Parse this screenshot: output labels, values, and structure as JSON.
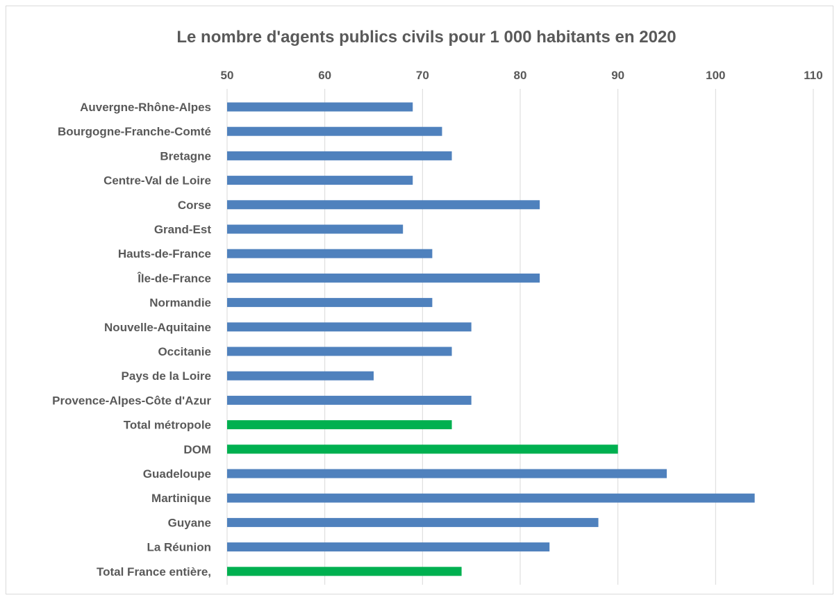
{
  "chart_data": {
    "type": "bar",
    "orientation": "horizontal",
    "title": "Le nombre d'agents publics civils pour 1 000 habitants en 2020",
    "xlabel": "",
    "ylabel": "",
    "xlim": [
      50,
      110
    ],
    "xticks": [
      50,
      60,
      70,
      80,
      90,
      100,
      110
    ],
    "x_axis_position": "top",
    "grid": "vertical",
    "categories": [
      "Auvergne-Rhône-Alpes",
      "Bourgogne-Franche-Comté",
      "Bretagne",
      "Centre-Val de Loire",
      "Corse",
      "Grand-Est",
      "Hauts-de-France",
      "Île-de-France",
      "Normandie",
      "Nouvelle-Aquitaine",
      "Occitanie",
      "Pays de la Loire",
      "Provence-Alpes-Côte d'Azur",
      "Total métropole",
      "DOM",
      "Guadeloupe",
      "Martinique",
      "Guyane",
      "La Réunion",
      "Total France entière,"
    ],
    "values": [
      69,
      72,
      73,
      69,
      82,
      68,
      71,
      82,
      71,
      75,
      73,
      65,
      75,
      73,
      90,
      95,
      104,
      88,
      83,
      74
    ],
    "highlight_indices": [
      13,
      14,
      19
    ],
    "colors": {
      "default": "#4f81bd",
      "highlight": "#00b050",
      "grid": "#d9d9d9",
      "text": "#595959",
      "border": "#d9d9d9"
    }
  }
}
